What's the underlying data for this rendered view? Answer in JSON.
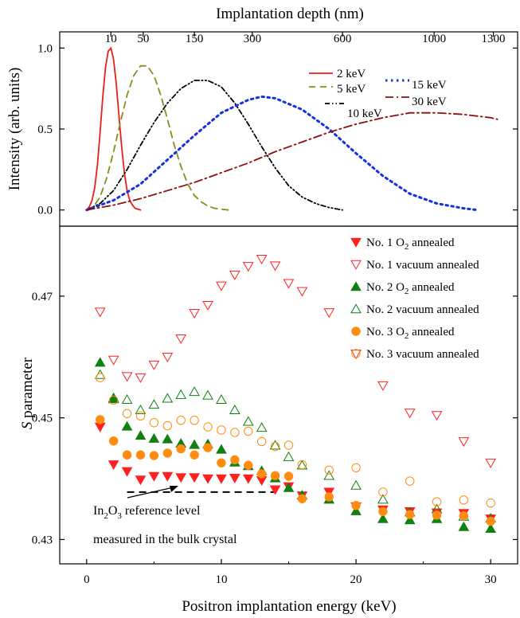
{
  "chart_data": [
    {
      "type": "line",
      "panel": "top",
      "top_axis_label": "Implantation depth (nm)",
      "top_ticks": [
        {
          "label": "10",
          "energy": 1.8
        },
        {
          "label": "50",
          "energy": 4.2
        },
        {
          "label": "150",
          "energy": 8.0
        },
        {
          "label": "300",
          "energy": 12.3
        },
        {
          "label": "600",
          "energy": 19.0
        },
        {
          "label": "1000",
          "energy": 25.8
        },
        {
          "label": "1300",
          "energy": 30.2
        }
      ],
      "ylabel": "Intensity (arb. units)",
      "ylim": [
        -0.1,
        1.1
      ],
      "yticks": [
        "0.0",
        "0.5",
        "1.0"
      ],
      "xlim": [
        -2,
        32
      ],
      "series": [
        {
          "name": "2 keV",
          "color": "#e8201a",
          "dash": "solid",
          "x": [
            0,
            0.2,
            0.4,
            0.6,
            0.8,
            1.0,
            1.2,
            1.4,
            1.6,
            1.8,
            2.0,
            2.2,
            2.4,
            2.6,
            2.8,
            3.0,
            3.2,
            3.4,
            3.6,
            3.8,
            4.0
          ],
          "y": [
            0,
            0.02,
            0.06,
            0.14,
            0.28,
            0.48,
            0.7,
            0.88,
            0.98,
            1.0,
            0.93,
            0.78,
            0.58,
            0.39,
            0.23,
            0.12,
            0.06,
            0.03,
            0.01,
            0.005,
            0
          ]
        },
        {
          "name": "5 keV",
          "color": "#8b8b1a",
          "dash": "8,6",
          "x": [
            0,
            0.5,
            1.0,
            1.5,
            2.0,
            2.5,
            3.0,
            3.5,
            4.0,
            4.5,
            5.0,
            5.5,
            6.0,
            6.5,
            7.0,
            7.5,
            8.0,
            8.5,
            9.0,
            9.5,
            10.0,
            10.5
          ],
          "y": [
            0,
            0.02,
            0.08,
            0.2,
            0.36,
            0.54,
            0.71,
            0.83,
            0.89,
            0.89,
            0.83,
            0.71,
            0.56,
            0.4,
            0.27,
            0.16,
            0.09,
            0.05,
            0.025,
            0.01,
            0.005,
            0
          ]
        },
        {
          "name": "10 keV",
          "color": "#000000",
          "dash": "6,3,1.5,3,1.5,3",
          "x": [
            0,
            1,
            2,
            3,
            4,
            5,
            6,
            7,
            8,
            9,
            10,
            11,
            12,
            13,
            14,
            15,
            16,
            17,
            18,
            19
          ],
          "y": [
            0,
            0.04,
            0.12,
            0.25,
            0.4,
            0.54,
            0.66,
            0.75,
            0.8,
            0.8,
            0.76,
            0.66,
            0.53,
            0.39,
            0.26,
            0.15,
            0.08,
            0.04,
            0.015,
            0
          ]
        },
        {
          "name": "15 keV",
          "color": "#1432e0",
          "dash": "2.5,4.5",
          "x": [
            0,
            2,
            4,
            6,
            8,
            10,
            12,
            13,
            14,
            16,
            18,
            20,
            22,
            24,
            26,
            28,
            29
          ],
          "y": [
            0,
            0.06,
            0.16,
            0.31,
            0.46,
            0.6,
            0.68,
            0.7,
            0.69,
            0.62,
            0.5,
            0.35,
            0.21,
            0.1,
            0.04,
            0.01,
            0
          ]
        },
        {
          "name": "30 keV",
          "color": "#8b1010",
          "dash": "10,4,2,4",
          "x": [
            0,
            2,
            4,
            6,
            8,
            10,
            12,
            14,
            16,
            18,
            20,
            22,
            24,
            26,
            28,
            30,
            30.5
          ],
          "y": [
            0,
            0.03,
            0.07,
            0.12,
            0.17,
            0.23,
            0.29,
            0.36,
            0.42,
            0.48,
            0.53,
            0.57,
            0.6,
            0.6,
            0.59,
            0.57,
            0.56
          ]
        }
      ]
    },
    {
      "type": "scatter",
      "panel": "bottom",
      "xlabel": "Positron implantation energy (keV)",
      "ylabel_italic": "S",
      "ylabel_rest": " parameter",
      "xlim": [
        -2,
        32
      ],
      "ylim": [
        0.426,
        0.4815
      ],
      "xticks": [
        "0",
        "10",
        "20",
        "30"
      ],
      "yticks": [
        "0.43",
        "0.45",
        "0.47"
      ],
      "reference_level": 0.4378,
      "reference_x": [
        3,
        14
      ],
      "annotation_line1_pre": "In",
      "annotation_line1_sub": "2",
      "annotation_line1_mid": "O",
      "annotation_line1_sub2": "3",
      "annotation_line1_post": " reference level",
      "annotation_line2": "measured in the bulk crystal",
      "series": [
        {
          "name_pre": "No. 1 O",
          "name_sub": "2",
          "name_post": " annealed",
          "marker": "triangle-down",
          "filled": true,
          "color": "#ff2020",
          "x": [
            1,
            2,
            3,
            4,
            5,
            6,
            7,
            8,
            9,
            10,
            11,
            12,
            13,
            14,
            15,
            16,
            18,
            20,
            22,
            24,
            26,
            28,
            30
          ],
          "y": [
            0.4485,
            0.4423,
            0.4412,
            0.4398,
            0.4404,
            0.4404,
            0.4402,
            0.4402,
            0.44,
            0.44,
            0.4401,
            0.44,
            0.4397,
            0.4382,
            0.4387,
            0.4372,
            0.4378,
            0.4354,
            0.4349,
            0.4346,
            0.4344,
            0.4343,
            0.4334
          ]
        },
        {
          "name_pre": "No. 1 vacuum annealed",
          "name_sub": "",
          "name_post": "",
          "marker": "triangle-down",
          "filled": false,
          "color": "#ff2020",
          "x": [
            1,
            2,
            3,
            4,
            5,
            6,
            7,
            8,
            9,
            10,
            11,
            12,
            13,
            14,
            15,
            16,
            18,
            20,
            22,
            24,
            26,
            28,
            30
          ],
          "y": [
            0.4674,
            0.4595,
            0.4568,
            0.4566,
            0.4587,
            0.46,
            0.463,
            0.4672,
            0.4685,
            0.4717,
            0.4735,
            0.4749,
            0.4761,
            0.475,
            0.4721,
            0.4708,
            0.4673,
            0.4605,
            0.4553,
            0.4508,
            0.4504,
            0.4461,
            0.4426
          ]
        },
        {
          "name_pre": "No. 2 O",
          "name_sub": "2",
          "name_post": " annealed",
          "marker": "triangle-up",
          "filled": true,
          "color": "#108010",
          "x": [
            1,
            2,
            3,
            4,
            5,
            6,
            7,
            8,
            9,
            10,
            11,
            12,
            13,
            14,
            15,
            16,
            18,
            20,
            22,
            24,
            26,
            28,
            30
          ],
          "y": [
            0.4591,
            0.4531,
            0.4486,
            0.4471,
            0.4466,
            0.4465,
            0.4458,
            0.4456,
            0.4457,
            0.4448,
            0.4427,
            0.4421,
            0.4413,
            0.4401,
            0.4385,
            0.4373,
            0.4366,
            0.4347,
            0.4334,
            0.4332,
            0.4334,
            0.4321,
            0.4318
          ]
        },
        {
          "name_pre": "No. 2 vacuum annealed",
          "name_sub": "",
          "name_post": "",
          "marker": "triangle-up",
          "filled": false,
          "color": "#108010",
          "x": [
            1,
            2,
            3,
            4,
            5,
            6,
            7,
            8,
            9,
            10,
            11,
            12,
            13,
            14,
            15,
            16,
            18,
            20,
            22,
            24,
            26,
            28,
            30
          ],
          "y": [
            0.4571,
            0.4533,
            0.453,
            0.4513,
            0.4522,
            0.4532,
            0.4538,
            0.4543,
            0.4537,
            0.453,
            0.4513,
            0.4494,
            0.4484,
            0.4455,
            0.4436,
            0.4422,
            0.4405,
            0.4389,
            0.4366,
            0.4345,
            0.435,
            0.4338,
            0.4335
          ]
        },
        {
          "name_pre": "No. 3 O",
          "name_sub": "2",
          "name_post": " annealed",
          "marker": "circle",
          "filled": true,
          "color": "#ff8c10",
          "x": [
            1,
            2,
            3,
            4,
            5,
            6,
            7,
            8,
            9,
            10,
            11,
            12,
            13,
            14,
            15,
            16,
            18,
            20,
            22,
            24,
            26,
            28,
            30
          ],
          "y": [
            0.4497,
            0.4462,
            0.4439,
            0.4439,
            0.4438,
            0.4442,
            0.4449,
            0.4439,
            0.4451,
            0.4426,
            0.4431,
            0.4422,
            0.4408,
            0.4405,
            0.4404,
            0.4367,
            0.437,
            0.4356,
            0.4346,
            0.4341,
            0.434,
            0.4339,
            0.433
          ]
        },
        {
          "name_pre": "No. 3 vacuum annealed",
          "name_sub": "",
          "name_post": "",
          "marker": "circle",
          "filled": false,
          "color": "#ff8c10",
          "x": [
            1,
            2,
            3,
            4,
            5,
            6,
            7,
            8,
            9,
            10,
            11,
            12,
            13,
            14,
            15,
            16,
            18,
            20,
            22,
            24,
            26,
            28,
            30
          ],
          "y": [
            0.4566,
            0.4529,
            0.4507,
            0.4503,
            0.4492,
            0.4487,
            0.4496,
            0.4496,
            0.4485,
            0.448,
            0.4476,
            0.4478,
            0.4461,
            0.4453,
            0.4455,
            0.4423,
            0.4414,
            0.4418,
            0.4378,
            0.4396,
            0.4362,
            0.4365,
            0.436
          ]
        }
      ]
    }
  ]
}
